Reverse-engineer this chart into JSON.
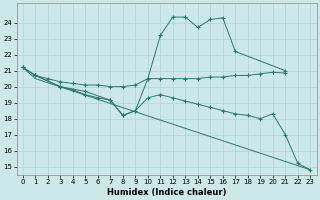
{
  "xlabel": "Humidex (Indice chaleur)",
  "background_color": "#cce8e8",
  "grid_color": "#b0d4d4",
  "line_color": "#2a7a6a",
  "xlim": [
    -0.5,
    23.5
  ],
  "ylim": [
    14.5,
    25.2
  ],
  "yticks": [
    15,
    16,
    17,
    18,
    19,
    20,
    21,
    22,
    23,
    24
  ],
  "xticks": [
    0,
    1,
    2,
    3,
    4,
    5,
    6,
    7,
    8,
    9,
    10,
    11,
    12,
    13,
    14,
    15,
    16,
    17,
    18,
    19,
    20,
    21,
    22,
    23
  ],
  "line1_x": [
    0,
    1,
    2,
    3,
    4,
    5,
    6,
    7,
    8,
    9,
    10,
    11,
    12,
    13,
    14,
    15,
    16,
    17,
    18,
    19,
    20,
    21
  ],
  "line1_y": [
    21.2,
    20.7,
    20.5,
    20.3,
    20.2,
    20.1,
    20.1,
    20.0,
    20.0,
    20.1,
    20.5,
    20.5,
    20.5,
    20.5,
    20.5,
    20.6,
    20.6,
    20.7,
    20.7,
    20.8,
    20.9,
    20.85
  ],
  "line2_x": [
    0,
    1,
    3,
    5,
    7,
    8,
    9,
    10,
    11,
    12,
    13,
    14,
    15,
    16,
    17,
    21
  ],
  "line2_y": [
    21.2,
    20.7,
    20.0,
    19.7,
    19.15,
    18.2,
    18.5,
    20.5,
    23.2,
    24.35,
    24.35,
    23.7,
    24.2,
    24.3,
    22.2,
    21.0
  ],
  "line3_x": [
    0,
    1,
    3,
    4,
    5,
    6,
    7,
    8,
    9,
    10,
    11,
    12,
    13,
    14,
    15,
    16,
    17,
    18,
    19,
    20,
    21,
    22,
    23
  ],
  "line3_y": [
    21.2,
    20.7,
    20.0,
    19.8,
    19.5,
    19.3,
    19.15,
    18.2,
    18.5,
    19.3,
    19.5,
    19.3,
    19.1,
    18.9,
    18.7,
    18.5,
    18.3,
    18.2,
    18.0,
    18.3,
    17.0,
    15.2,
    14.8
  ],
  "line4_x": [
    0,
    1,
    23
  ],
  "line4_y": [
    21.2,
    20.5,
    14.8
  ]
}
